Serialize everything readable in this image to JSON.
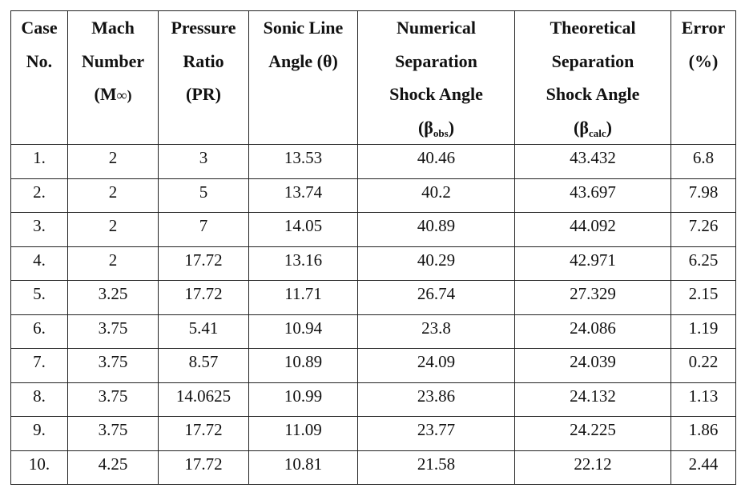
{
  "table": {
    "headers": [
      {
        "lines": [
          "Case",
          "No."
        ]
      },
      {
        "lines": [
          "Mach",
          "Number",
          ""
        ],
        "symbol": {
          "pre": "(M",
          "sub": "",
          "post": "∞)"
        }
      },
      {
        "lines": [
          "Pressure",
          "Ratio",
          "(PR)"
        ]
      },
      {
        "lines": [
          "Sonic Line",
          "Angle (θ)"
        ]
      },
      {
        "lines": [
          "Numerical",
          "Separation",
          "Shock Angle"
        ],
        "symbol": {
          "pre": "(β",
          "sub": "obs",
          "post": ")"
        }
      },
      {
        "lines": [
          "Theoretical",
          "Separation",
          "Shock Angle"
        ],
        "symbol": {
          "pre": "(β",
          "sub": "calc",
          "post": ")"
        }
      },
      {
        "lines": [
          "Error",
          "(%)"
        ]
      }
    ],
    "rows": [
      [
        "1.",
        "2",
        "3",
        "13.53",
        "40.46",
        "43.432",
        "6.8"
      ],
      [
        "2.",
        "2",
        "5",
        "13.74",
        "40.2",
        "43.697",
        "7.98"
      ],
      [
        "3.",
        "2",
        "7",
        "14.05",
        "40.89",
        "44.092",
        "7.26"
      ],
      [
        "4.",
        "2",
        "17.72",
        "13.16",
        "40.29",
        "42.971",
        "6.25"
      ],
      [
        "5.",
        "3.25",
        "17.72",
        "11.71",
        "26.74",
        "27.329",
        "2.15"
      ],
      [
        "6.",
        "3.75",
        "5.41",
        "10.94",
        "23.8",
        "24.086",
        "1.19"
      ],
      [
        "7.",
        "3.75",
        "8.57",
        "10.89",
        "24.09",
        "24.039",
        "0.22"
      ],
      [
        "8.",
        "3.75",
        "14.0625",
        "10.99",
        "23.86",
        "24.132",
        "1.13"
      ],
      [
        "9.",
        "3.75",
        "17.72",
        "11.09",
        "23.77",
        "24.225",
        "1.86"
      ],
      [
        "10.",
        "4.25",
        "17.72",
        "10.81",
        "21.58",
        "22.12",
        "2.44"
      ]
    ]
  }
}
